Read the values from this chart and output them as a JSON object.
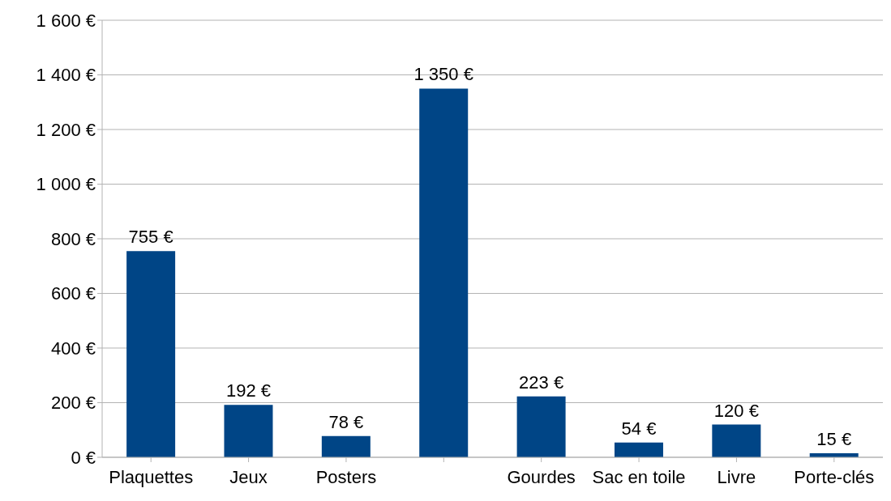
{
  "chart_data": {
    "type": "bar",
    "categories": [
      "Plaquettes",
      "Jeux",
      "Posters",
      null,
      "Gourdes",
      "Sac en toile",
      "Livre",
      "Porte-clés"
    ],
    "values": [
      755,
      192,
      78,
      1350,
      223,
      54,
      120,
      15
    ],
    "value_labels": [
      "755 €",
      "192 €",
      "78 €",
      "1 350 €",
      "223 €",
      "54 €",
      "120 €",
      "15 €"
    ],
    "color": "#004586",
    "ylim": [
      0,
      1600
    ],
    "yticks": [
      {
        "value": 0,
        "label": "0 €"
      },
      {
        "value": 200,
        "label": "200 €"
      },
      {
        "value": 400,
        "label": "400 €"
      },
      {
        "value": 600,
        "label": "600 €"
      },
      {
        "value": 800,
        "label": "800 €"
      },
      {
        "value": 1000,
        "label": "1 000 €"
      },
      {
        "value": 1200,
        "label": "1 200 €"
      },
      {
        "value": 1400,
        "label": "1 400 €"
      },
      {
        "value": 1600,
        "label": "1 600 €"
      }
    ],
    "grid": "y"
  }
}
